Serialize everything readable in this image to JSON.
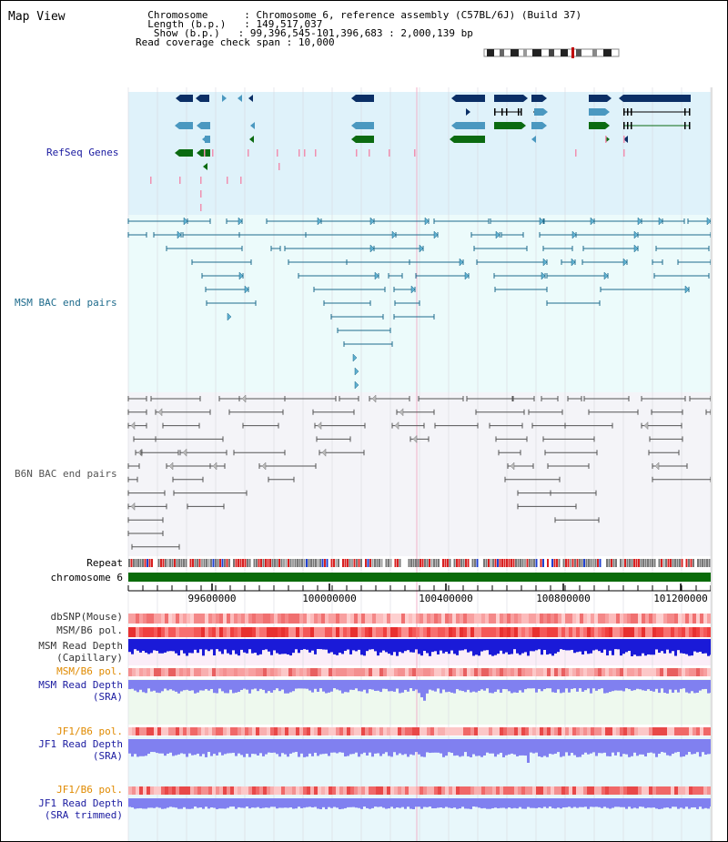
{
  "view": {
    "title": "Map View"
  },
  "info": {
    "chromosome_key": "Chromosome",
    "chromosome_value": "Chromosome 6, reference assembly (C57BL/6J) (Build 37)",
    "length_key": "Length (b.p.)",
    "length_value": "149,517,037",
    "show_key": "Show (b.p.)",
    "show_value": "99,396,545-101,396,683 : 2,000,139 bp",
    "coverage_key": "Read coverage check span",
    "coverage_value": "10,000"
  },
  "tracks": {
    "refseq": "RefSeq Genes",
    "msm_bac": "MSM BAC end pairs",
    "b6n_bac": "B6N BAC end pairs",
    "repeat": "Repeat",
    "chromosome": "chromosome 6",
    "dbsnp": "dbSNP(Mouse)",
    "msm_b6_pol": "MSM/B6 pol.",
    "msm_depth_cap_1": "MSM Read Depth",
    "msm_depth_cap_2": "(Capillary)",
    "msm_b6_pol_2": "MSM/B6 pol.",
    "msm_depth_sra_1": "MSM Read Depth",
    "msm_depth_sra_2": "(SRA)",
    "jf1_b6_pol": "JF1/B6 pol.",
    "jf1_depth_sra_1": "JF1 Read Depth",
    "jf1_depth_sra_2": "(SRA)",
    "jf1_b6_pol_2": "JF1/B6 pol.",
    "jf1_depth_trim_1": "JF1 Read Depth",
    "jf1_depth_trim_2": "(SRA trimmed)"
  },
  "axis": {
    "ticks": [
      "99600000",
      "100000000",
      "100400000",
      "100800000",
      "101200000"
    ]
  },
  "colors": {
    "refseq_bg": "#dff2fa",
    "msm_bg": "#ecfbfb",
    "b6n_bg": "#f4f4f8",
    "gene_dark": "#0b2f66",
    "gene_mid": "#4a98c0",
    "gene_green": "#0b6b11",
    "msm_line": "#1e6b8c",
    "b6n_line": "#555555",
    "chromosome_bar": "#0a6b0a",
    "track_label_blue": "#1a1aa0",
    "track_label_orange": "#e08a00",
    "depth_blue": "#1a1ad8",
    "depth_light_blue": "#8080f0",
    "pol_red": "#f04040"
  }
}
